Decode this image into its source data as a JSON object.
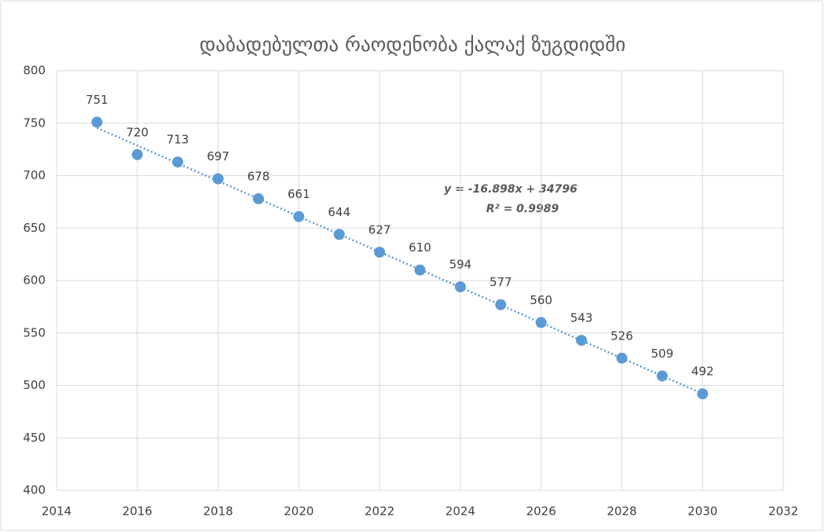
{
  "chart_data": {
    "type": "scatter",
    "title": "დაბადებულთა რაოდენობა ქალაქ ზუგდიდში",
    "x": [
      2015,
      2016,
      2017,
      2018,
      2019,
      2020,
      2021,
      2022,
      2023,
      2024,
      2025,
      2026,
      2027,
      2028,
      2029,
      2030
    ],
    "values": [
      751,
      720,
      713,
      697,
      678,
      661,
      644,
      627,
      610,
      594,
      577,
      560,
      543,
      526,
      509,
      492
    ],
    "color": "#5b9bd5",
    "xlim": [
      2014,
      2032
    ],
    "xticks": [
      2014,
      2016,
      2018,
      2020,
      2022,
      2024,
      2026,
      2028,
      2030,
      2032
    ],
    "ylim": [
      400,
      800
    ],
    "yticks": [
      400,
      450,
      500,
      550,
      600,
      650,
      700,
      750,
      800
    ],
    "grid": true,
    "trendline": {
      "equation": "y = -16.898x + 34796",
      "r_squared": "R² = 0.9989"
    }
  }
}
